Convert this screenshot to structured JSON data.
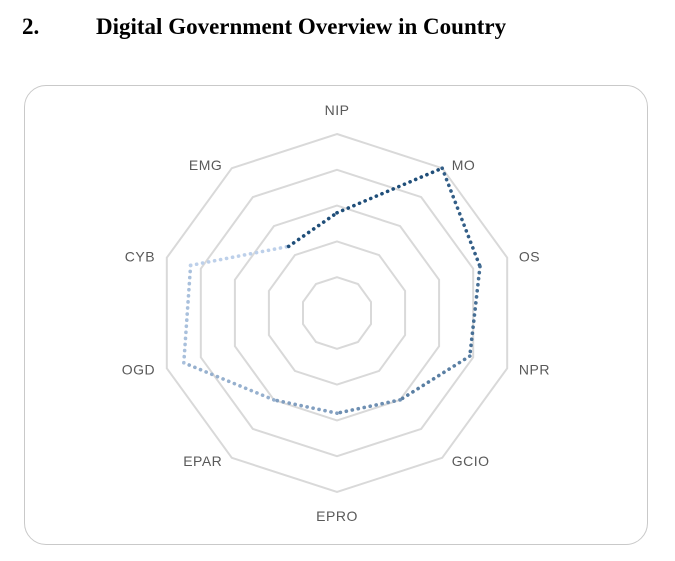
{
  "heading": {
    "number": "2.",
    "title": "Digital Government Overview in Country"
  },
  "chart_data": {
    "type": "radar",
    "categories": [
      "NIP",
      "MO",
      "OS",
      "NPR",
      "GCIO",
      "EPRO",
      "EPAR",
      "OGD",
      "CYB",
      "EMG"
    ],
    "rlim": [
      0,
      5
    ],
    "rings": 5,
    "grid": true,
    "values": [
      2.8,
      5.0,
      4.2,
      3.9,
      3.0,
      2.8,
      3.0,
      4.5,
      4.3,
      2.3
    ],
    "colors": {
      "grid": "#d9d9d9",
      "series_start": "#1f4e79",
      "series_end": "#bdd0ea",
      "labels": "#595959"
    }
  }
}
